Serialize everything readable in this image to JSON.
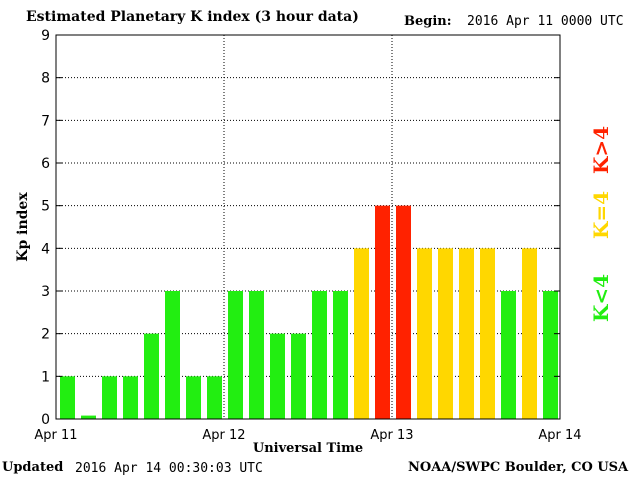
{
  "header": {
    "title": "Estimated Planetary K index (3 hour data)",
    "begin_label": "Begin:",
    "begin_value": "2016 Apr 11 0000 UTC"
  },
  "footer": {
    "updated_label": "Updated",
    "updated_value": "2016 Apr 14 00:30:03 UTC",
    "organization": "NOAA/SWPC Boulder, CO USA"
  },
  "colors": {
    "low": "#22ee11",
    "moderate": "#ffd700",
    "high": "#ff2200"
  },
  "chart_data": {
    "type": "bar",
    "title": "Estimated Planetary K index (3 hour data)",
    "xlabel": "Universal Time",
    "ylabel": "Kp index",
    "ylim": [
      0,
      9
    ],
    "yticks": [
      0,
      1,
      2,
      3,
      4,
      5,
      6,
      7,
      8,
      9
    ],
    "xticks": [
      "Apr 11",
      "Apr 12",
      "Apr 13",
      "Apr 14"
    ],
    "values": [
      1,
      0,
      1,
      1,
      2,
      3,
      1,
      1,
      3,
      3,
      2,
      2,
      3,
      3,
      4,
      5,
      5,
      4,
      4,
      4,
      4,
      3,
      4,
      3
    ],
    "legend": [
      {
        "label": "K<4",
        "color_key": "low"
      },
      {
        "label": "K=4",
        "color_key": "moderate"
      },
      {
        "label": "K>4",
        "color_key": "high"
      }
    ],
    "legend_placement": "right",
    "grid": "dotted"
  }
}
